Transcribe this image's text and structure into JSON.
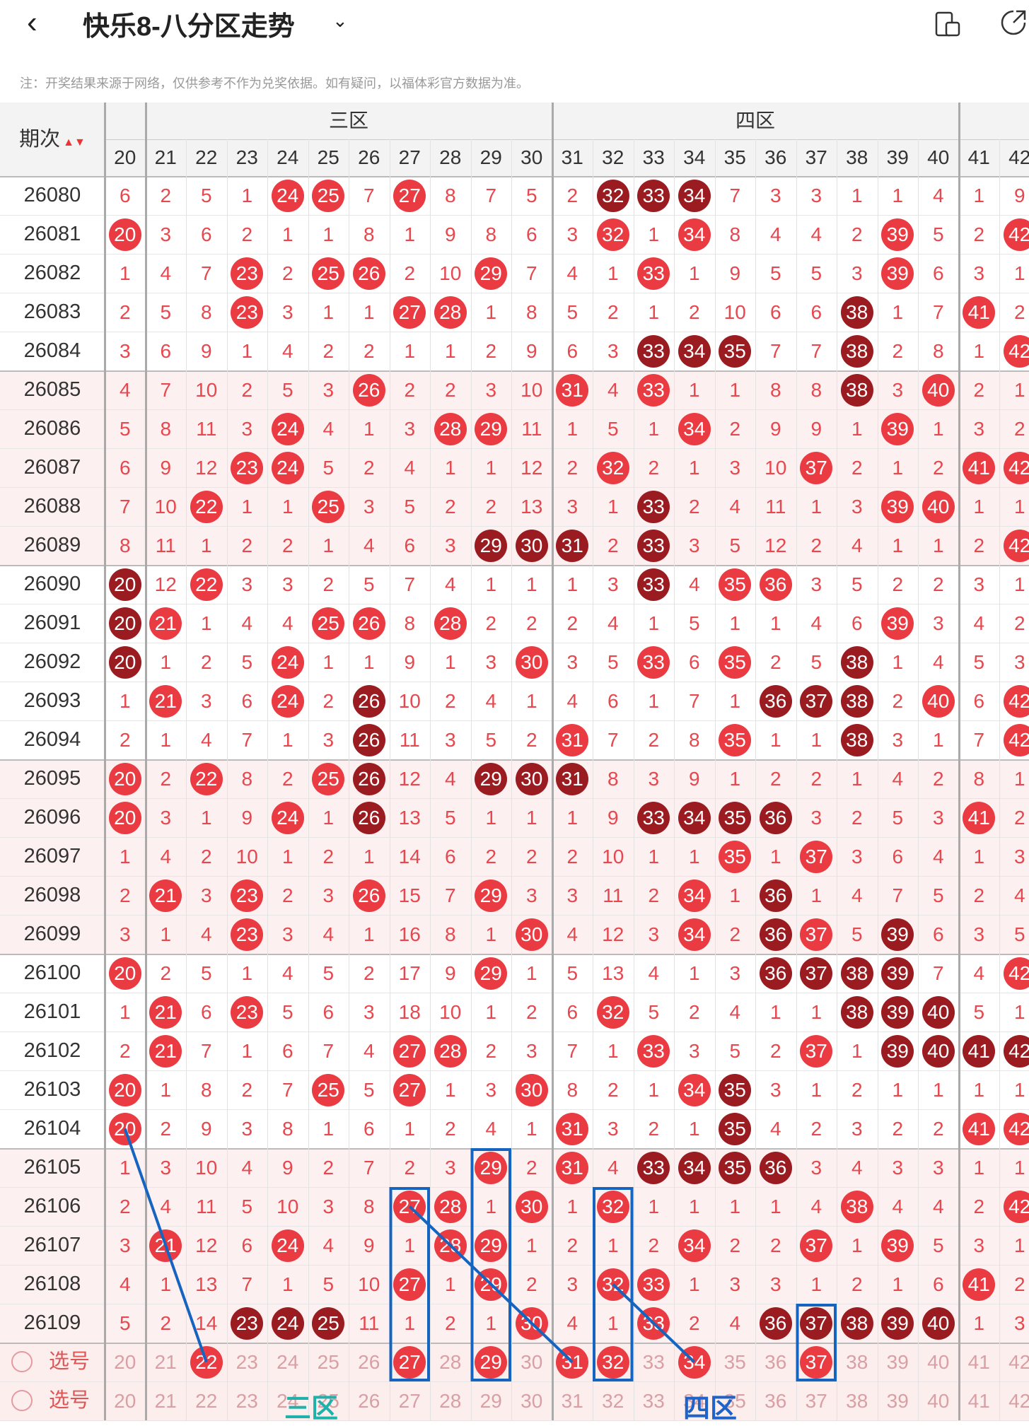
{
  "header": {
    "title": "快乐8-八分区走势",
    "back_icon": "chevron-left-icon",
    "dropdown_icon": "chevron-down-icon",
    "right_icons": [
      "phone-rotate-icon",
      "share-icon"
    ]
  },
  "notice": "注：开奖结果来源于网络，仅供参考不作为兑奖依据。如有疑问，以福体彩官方数据为准。",
  "table": {
    "period_header": "期次",
    "zone_headers": [
      "三区",
      "四区"
    ],
    "columns": [
      20,
      21,
      22,
      23,
      24,
      25,
      26,
      27,
      28,
      29,
      30,
      31,
      32,
      33,
      34,
      35,
      36,
      37,
      38,
      39,
      40,
      41,
      42
    ],
    "rows": [
      {
        "period": "26080",
        "cells": [
          "6",
          "2",
          "5",
          "1",
          "24r",
          "25r",
          "7",
          "27r",
          "8",
          "7",
          "5",
          "2",
          "32d",
          "33d",
          "34d",
          "7",
          "3",
          "3",
          "1",
          "1",
          "4",
          "1",
          "9"
        ]
      },
      {
        "period": "26081",
        "cells": [
          "20r",
          "3",
          "6",
          "2",
          "1",
          "1",
          "8",
          "1",
          "9",
          "8",
          "6",
          "3",
          "32r",
          "1",
          "34r",
          "8",
          "4",
          "4",
          "2",
          "39r",
          "5",
          "2",
          "42r"
        ]
      },
      {
        "period": "26082",
        "cells": [
          "1",
          "4",
          "7",
          "23r",
          "2",
          "25r",
          "26r",
          "2",
          "10",
          "29r",
          "7",
          "4",
          "1",
          "33r",
          "1",
          "9",
          "5",
          "5",
          "3",
          "39r",
          "6",
          "3",
          "1"
        ]
      },
      {
        "period": "26083",
        "cells": [
          "2",
          "5",
          "8",
          "23r",
          "3",
          "1",
          "1",
          "27r",
          "28r",
          "1",
          "8",
          "5",
          "2",
          "1",
          "2",
          "10",
          "6",
          "6",
          "38d",
          "1",
          "7",
          "41r",
          "2"
        ]
      },
      {
        "period": "26084",
        "cells": [
          "3",
          "6",
          "9",
          "1",
          "4",
          "2",
          "2",
          "1",
          "1",
          "2",
          "9",
          "6",
          "3",
          "33d",
          "34d",
          "35d",
          "7",
          "7",
          "38d",
          "2",
          "8",
          "1",
          "42r"
        ]
      },
      {
        "period": "26085",
        "cells": [
          "4",
          "7",
          "10",
          "2",
          "5",
          "3",
          "26r",
          "2",
          "2",
          "3",
          "10",
          "31r",
          "4",
          "33r",
          "1",
          "1",
          "8",
          "8",
          "38d",
          "3",
          "40r",
          "2",
          "1"
        ]
      },
      {
        "period": "26086",
        "cells": [
          "5",
          "8",
          "11",
          "3",
          "24r",
          "4",
          "1",
          "3",
          "28r",
          "29r",
          "11",
          "1",
          "5",
          "1",
          "34r",
          "2",
          "9",
          "9",
          "1",
          "39r",
          "1",
          "3",
          "2"
        ]
      },
      {
        "period": "26087",
        "cells": [
          "6",
          "9",
          "12",
          "23r",
          "24r",
          "5",
          "2",
          "4",
          "1",
          "1",
          "12",
          "2",
          "32r",
          "2",
          "1",
          "3",
          "10",
          "37r",
          "2",
          "1",
          "2",
          "41r",
          "42r"
        ]
      },
      {
        "period": "26088",
        "cells": [
          "7",
          "10",
          "22r",
          "1",
          "1",
          "25r",
          "3",
          "5",
          "2",
          "2",
          "13",
          "3",
          "1",
          "33d",
          "2",
          "4",
          "11",
          "1",
          "3",
          "39r",
          "40r",
          "1",
          "1"
        ]
      },
      {
        "period": "26089",
        "cells": [
          "8",
          "11",
          "1",
          "2",
          "2",
          "1",
          "4",
          "6",
          "3",
          "29d",
          "30d",
          "31d",
          "2",
          "33d",
          "3",
          "5",
          "12",
          "2",
          "4",
          "1",
          "1",
          "2",
          "42r"
        ]
      },
      {
        "period": "26090",
        "cells": [
          "20d",
          "12",
          "22r",
          "3",
          "3",
          "2",
          "5",
          "7",
          "4",
          "1",
          "1",
          "1",
          "3",
          "33d",
          "4",
          "35r",
          "36r",
          "3",
          "5",
          "2",
          "2",
          "3",
          "1"
        ]
      },
      {
        "period": "26091",
        "cells": [
          "20d",
          "21r",
          "1",
          "4",
          "4",
          "25r",
          "26r",
          "8",
          "28r",
          "2",
          "2",
          "2",
          "4",
          "1",
          "5",
          "1",
          "1",
          "4",
          "6",
          "39r",
          "3",
          "4",
          "2"
        ]
      },
      {
        "period": "26092",
        "cells": [
          "20d",
          "1",
          "2",
          "5",
          "24r",
          "1",
          "1",
          "9",
          "1",
          "3",
          "30r",
          "3",
          "5",
          "33r",
          "6",
          "35r",
          "2",
          "5",
          "38d",
          "1",
          "4",
          "5",
          "3"
        ]
      },
      {
        "period": "26093",
        "cells": [
          "1",
          "21r",
          "3",
          "6",
          "24r",
          "2",
          "26d",
          "10",
          "2",
          "4",
          "1",
          "4",
          "6",
          "1",
          "7",
          "1",
          "36d",
          "37d",
          "38d",
          "2",
          "40r",
          "6",
          "42r"
        ]
      },
      {
        "period": "26094",
        "cells": [
          "2",
          "1",
          "4",
          "7",
          "1",
          "3",
          "26d",
          "11",
          "3",
          "5",
          "2",
          "31r",
          "7",
          "2",
          "8",
          "35r",
          "1",
          "1",
          "38d",
          "3",
          "1",
          "7",
          "42r"
        ]
      },
      {
        "period": "26095",
        "cells": [
          "20r",
          "2",
          "22r",
          "8",
          "2",
          "25r",
          "26d",
          "12",
          "4",
          "29d",
          "30d",
          "31d",
          "8",
          "3",
          "9",
          "1",
          "2",
          "2",
          "1",
          "4",
          "2",
          "8",
          "1"
        ]
      },
      {
        "period": "26096",
        "cells": [
          "20r",
          "3",
          "1",
          "9",
          "24r",
          "1",
          "26d",
          "13",
          "5",
          "1",
          "1",
          "1",
          "9",
          "33d",
          "34d",
          "35d",
          "36d",
          "3",
          "2",
          "5",
          "3",
          "41r",
          "2"
        ]
      },
      {
        "period": "26097",
        "cells": [
          "1",
          "4",
          "2",
          "10",
          "1",
          "2",
          "1",
          "14",
          "6",
          "2",
          "2",
          "2",
          "10",
          "1",
          "1",
          "35r",
          "1",
          "37r",
          "3",
          "6",
          "4",
          "1",
          "3"
        ]
      },
      {
        "period": "26098",
        "cells": [
          "2",
          "21r",
          "3",
          "23r",
          "2",
          "3",
          "26r",
          "15",
          "7",
          "29r",
          "3",
          "3",
          "11",
          "2",
          "34r",
          "1",
          "36d",
          "1",
          "4",
          "7",
          "5",
          "2",
          "4"
        ]
      },
      {
        "period": "26099",
        "cells": [
          "3",
          "1",
          "4",
          "23r",
          "3",
          "4",
          "1",
          "16",
          "8",
          "1",
          "30r",
          "4",
          "12",
          "3",
          "34r",
          "2",
          "36d",
          "37r",
          "5",
          "39d",
          "6",
          "3",
          "5"
        ]
      },
      {
        "period": "26100",
        "cells": [
          "20r",
          "2",
          "5",
          "1",
          "4",
          "5",
          "2",
          "17",
          "9",
          "29r",
          "1",
          "5",
          "13",
          "4",
          "1",
          "3",
          "36d",
          "37d",
          "38d",
          "39d",
          "7",
          "4",
          "42r"
        ]
      },
      {
        "period": "26101",
        "cells": [
          "1",
          "21r",
          "6",
          "23r",
          "5",
          "6",
          "3",
          "18",
          "10",
          "1",
          "2",
          "6",
          "32r",
          "5",
          "2",
          "4",
          "1",
          "1",
          "38d",
          "39d",
          "40d",
          "5",
          "1"
        ]
      },
      {
        "period": "26102",
        "cells": [
          "2",
          "21r",
          "7",
          "1",
          "6",
          "7",
          "4",
          "27r",
          "28r",
          "2",
          "3",
          "7",
          "1",
          "33r",
          "3",
          "5",
          "2",
          "37r",
          "1",
          "39d",
          "40d",
          "41d",
          "42d"
        ]
      },
      {
        "period": "26103",
        "cells": [
          "20r",
          "1",
          "8",
          "2",
          "7",
          "25r",
          "5",
          "27r",
          "1",
          "3",
          "30r",
          "8",
          "2",
          "1",
          "34r",
          "35d",
          "3",
          "1",
          "2",
          "1",
          "1",
          "1",
          "1"
        ]
      },
      {
        "period": "26104",
        "cells": [
          "20r",
          "2",
          "9",
          "3",
          "8",
          "1",
          "6",
          "1",
          "2",
          "4",
          "1",
          "31r",
          "3",
          "2",
          "1",
          "35d",
          "4",
          "2",
          "3",
          "2",
          "2",
          "41r",
          "42r"
        ]
      },
      {
        "period": "26105",
        "cells": [
          "1",
          "3",
          "10",
          "4",
          "9",
          "2",
          "7",
          "2",
          "3",
          "29r",
          "2",
          "31r",
          "4",
          "33d",
          "34d",
          "35d",
          "36d",
          "3",
          "4",
          "3",
          "3",
          "1",
          "1"
        ]
      },
      {
        "period": "26106",
        "cells": [
          "2",
          "4",
          "11",
          "5",
          "10",
          "3",
          "8",
          "27r",
          "28r",
          "1",
          "30r",
          "1",
          "32r",
          "1",
          "1",
          "1",
          "1",
          "4",
          "38r",
          "4",
          "4",
          "2",
          "42r"
        ]
      },
      {
        "period": "26107",
        "cells": [
          "3",
          "21r",
          "12",
          "6",
          "24r",
          "4",
          "9",
          "1",
          "28r",
          "29r",
          "1",
          "2",
          "1",
          "2",
          "34r",
          "2",
          "2",
          "37r",
          "1",
          "39r",
          "5",
          "3",
          "1"
        ]
      },
      {
        "period": "26108",
        "cells": [
          "4",
          "1",
          "13",
          "7",
          "1",
          "5",
          "10",
          "27r",
          "1",
          "29r",
          "2",
          "3",
          "32r",
          "33r",
          "1",
          "3",
          "3",
          "1",
          "2",
          "1",
          "6",
          "41r",
          "2"
        ]
      },
      {
        "period": "26109",
        "cells": [
          "5",
          "2",
          "14",
          "23d",
          "24d",
          "25d",
          "11",
          "1",
          "2",
          "1",
          "30r",
          "4",
          "1",
          "33r",
          "2",
          "4",
          "36d",
          "37d",
          "38d",
          "39d",
          "40d",
          "1",
          "3"
        ]
      }
    ],
    "select_rows": [
      {
        "label": "选号",
        "picked": [
          22,
          27,
          29,
          31,
          32,
          34,
          37
        ]
      },
      {
        "label": "选号",
        "picked": []
      }
    ]
  },
  "annotations": {
    "zone3_label": "三区",
    "zone4_label": "四区",
    "zone3_color": "#20b2aa",
    "zone4_color": "#1e63c8",
    "box_color": "#1565c0"
  },
  "colors": {
    "ball_red": "#ea3b42",
    "ball_dark": "#9a1b20",
    "number_red": "#e7474e",
    "row_tint": "#fdf0f0"
  }
}
